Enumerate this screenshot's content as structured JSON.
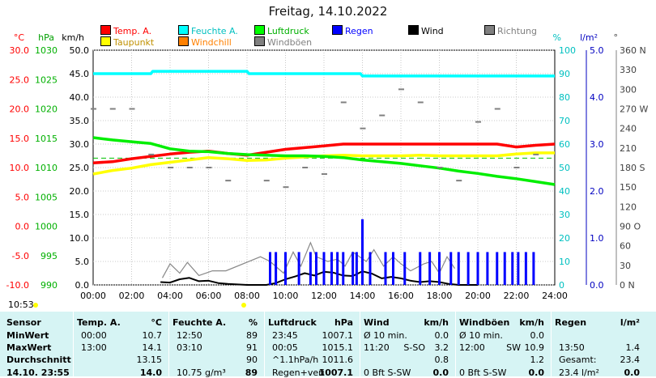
{
  "title": "Freitag, 14.10.2022",
  "time_label": "10:53",
  "legend": [
    {
      "label": "Temp. A.",
      "color": "#ff0000"
    },
    {
      "label": "Feuchte A.",
      "color": "#00ffff"
    },
    {
      "label": "Luftdruck",
      "color": "#00ff00"
    },
    {
      "label": "Regen",
      "color": "#0000ff"
    },
    {
      "label": "Wind",
      "color": "#000000"
    },
    {
      "label": "Richtung",
      "color": "#808080"
    },
    {
      "label": "Taupunkt",
      "color": "#ffff00"
    },
    {
      "label": "Windchill",
      "color": "#ff8000"
    },
    {
      "label": "Windböen",
      "color": "#808080"
    }
  ],
  "axis_units": {
    "temp": "°C",
    "press": "hPa",
    "wind": "km/h",
    "hum": "%",
    "rain": "l/m²",
    "dir": "°"
  },
  "chart_data": {
    "type": "line",
    "x_ticks": [
      "00:00",
      "02:00",
      "04:00",
      "06:00",
      "08:00",
      "10:00",
      "12:00",
      "14:00",
      "16:00",
      "18:00",
      "20:00",
      "22:00",
      "24:00"
    ],
    "axes": {
      "temp": {
        "range": [
          -10,
          30
        ],
        "ticks": [
          "-10.0",
          "-5.0",
          "0.0",
          "5.0",
          "10.0",
          "15.0",
          "20.0",
          "25.0",
          "30.0"
        ],
        "color": "#ff0000"
      },
      "pressure": {
        "range": [
          990,
          1030
        ],
        "ticks": [
          "990",
          "995",
          "1000",
          "1005",
          "1010",
          "1015",
          "1020",
          "1025",
          "1030"
        ],
        "color": "#00c000"
      },
      "wind": {
        "range": [
          0,
          50
        ],
        "ticks": [
          "0.0",
          "5.0",
          "10.0",
          "15.0",
          "20.0",
          "25.0",
          "30.0",
          "35.0",
          "40.0",
          "45.0",
          "50.0"
        ],
        "color": "#000000"
      },
      "humidity": {
        "range": [
          0,
          100
        ],
        "ticks": [
          "0",
          "10",
          "20",
          "30",
          "40",
          "50",
          "60",
          "70",
          "80",
          "90",
          "100"
        ],
        "color": "#00c0c0"
      },
      "rain": {
        "range": [
          0,
          5
        ],
        "ticks": [
          "0.0",
          "1.0",
          "2.0",
          "3.0",
          "4.0",
          "5.0"
        ],
        "color": "#0000c0"
      },
      "direction": {
        "range": [
          0,
          360
        ],
        "ticks": [
          "0 N",
          "30",
          "60",
          "90 O",
          "120",
          "150",
          "180 S",
          "210",
          "240",
          "270 W",
          "300",
          "330",
          "360 N"
        ],
        "color": "#404040"
      }
    },
    "series": [
      {
        "name": "Temp. A.",
        "axis": "temp",
        "color": "#ff0000",
        "x": [
          0,
          1,
          2,
          3,
          4,
          5,
          6,
          7,
          8,
          9,
          10,
          11,
          12,
          13,
          14,
          15,
          16,
          17,
          18,
          19,
          20,
          21,
          22,
          23,
          24
        ],
        "y": [
          10.8,
          11.0,
          11.5,
          11.9,
          12.3,
          12.6,
          12.8,
          12.4,
          12.1,
          12.6,
          13.1,
          13.4,
          13.7,
          14.0,
          14.0,
          14.0,
          14.0,
          14.0,
          14.0,
          14.0,
          14.0,
          14.0,
          13.5,
          13.8,
          14.0
        ]
      },
      {
        "name": "Taupunkt",
        "axis": "temp",
        "color": "#ffff00",
        "x": [
          0,
          1,
          2,
          3,
          4,
          5,
          6,
          7,
          8,
          9,
          10,
          11,
          12,
          13,
          14,
          15,
          16,
          17,
          18,
          19,
          20,
          21,
          22,
          23,
          24
        ],
        "y": [
          8.9,
          9.5,
          9.9,
          10.5,
          10.9,
          11.3,
          11.7,
          11.5,
          11.2,
          11.3,
          11.6,
          11.8,
          12.0,
          12.1,
          12.0,
          12.0,
          12.0,
          12.1,
          12.0,
          12.0,
          12.0,
          12.0,
          12.3,
          12.5,
          12.5
        ]
      },
      {
        "name": "Luftdruck",
        "axis": "pressure",
        "color": "#00ee00",
        "x": [
          0,
          1,
          2,
          3,
          4,
          5,
          6,
          7,
          8,
          9,
          10,
          11,
          12,
          13,
          14,
          15,
          16,
          17,
          18,
          19,
          20,
          21,
          22,
          23,
          24
        ],
        "y": [
          1015.1,
          1014.7,
          1014.4,
          1014.1,
          1013.2,
          1012.8,
          1012.7,
          1012.4,
          1012.2,
          1012.1,
          1012.0,
          1012.0,
          1011.9,
          1011.7,
          1011.3,
          1011.0,
          1010.7,
          1010.3,
          1009.9,
          1009.4,
          1009.0,
          1008.5,
          1008.1,
          1007.6,
          1007.1
        ]
      },
      {
        "name": "Feuchte A.",
        "axis": "humidity",
        "color": "#00ffff",
        "x": [
          0,
          3,
          3.1,
          8,
          8.1,
          13.9,
          14,
          21,
          21.1,
          24
        ],
        "y": [
          90,
          90,
          91,
          91,
          90,
          90,
          89,
          89,
          89,
          89
        ]
      },
      {
        "name": "Wind",
        "axis": "wind",
        "color": "#000000",
        "x": [
          3.5,
          4,
          4.5,
          5,
          5.5,
          6,
          6.5,
          7,
          7.5,
          8,
          8.5,
          9,
          9.5,
          10,
          10.5,
          11,
          11.5,
          12,
          12.5,
          13,
          13.5,
          14,
          14.5,
          15,
          15.5,
          16,
          16.5,
          17,
          17.5,
          18,
          18.5,
          19,
          19.5,
          20
        ],
        "y": [
          0.6,
          0.5,
          1.2,
          1.5,
          0.8,
          0.9,
          0.4,
          0.2,
          0.1,
          0.0,
          0.0,
          0.0,
          0.4,
          1.2,
          1.8,
          2.5,
          2.0,
          2.8,
          2.6,
          2.0,
          1.9,
          2.9,
          2.4,
          1.4,
          1.7,
          1.4,
          0.9,
          0.6,
          0.8,
          0.6,
          0.2,
          0.0,
          0.0,
          0.0
        ]
      },
      {
        "name": "Windböen",
        "axis": "wind",
        "color": "#888888",
        "x": [
          3.6,
          4,
          4.5,
          4.9,
          5.5,
          6.2,
          6.9,
          8.7,
          9.2,
          9.9,
          10.4,
          10.8,
          11.3,
          11.6,
          12.2,
          12.7,
          13.1,
          13.5,
          14.2,
          14.6,
          15.1,
          15.6,
          16.0,
          16.5,
          17.2,
          17.6,
          18.0,
          18.4,
          18.8
        ],
        "y": [
          1.5,
          4.5,
          2.5,
          4.8,
          2.0,
          3.0,
          3.0,
          6.0,
          5.0,
          2.5,
          7.0,
          4.0,
          9.0,
          6.0,
          5.0,
          5.5,
          4.0,
          7.0,
          5.0,
          7.5,
          4.0,
          6.0,
          4.5,
          3.0,
          4.5,
          5.0,
          2.5,
          6.0,
          3.5
        ]
      },
      {
        "name": "Regen",
        "axis": "rain",
        "color": "#0000ff",
        "x": [
          9.2,
          9.5,
          10.0,
          10.7,
          11.3,
          11.6,
          12.0,
          12.4,
          12.7,
          13.0,
          13.5,
          13.7,
          14.0,
          14.4,
          15.2,
          15.6,
          16.2,
          17.0,
          17.5,
          18.0,
          18.6,
          19.0,
          19.5,
          20.0,
          20.5,
          21.0,
          21.4,
          21.8,
          22.1,
          22.5,
          22.9
        ],
        "y": [
          0.7,
          0.7,
          0.7,
          0.7,
          0.7,
          0.7,
          0.7,
          0.7,
          0.7,
          0.7,
          0.7,
          0.7,
          1.4,
          0.7,
          0.7,
          0.7,
          0.7,
          0.7,
          0.7,
          0.7,
          0.7,
          0.7,
          0.7,
          0.7,
          0.7,
          0.7,
          0.7,
          0.7,
          0.7,
          0.7,
          0.7
        ]
      },
      {
        "name": "Richtung",
        "axis": "direction",
        "color": "#808080",
        "x": [
          0,
          1,
          2,
          3,
          4,
          5,
          6,
          7,
          9,
          10,
          11,
          12,
          13,
          14,
          15,
          16,
          17,
          18,
          19,
          20,
          21,
          22,
          23
        ],
        "y": [
          270,
          270,
          270,
          200,
          180,
          180,
          180,
          160,
          160,
          150,
          180,
          170,
          280,
          240,
          260,
          300,
          280,
          180,
          160,
          250,
          270,
          180,
          200
        ]
      }
    ]
  },
  "stats": {
    "headers": {
      "sensor": "Sensor",
      "temp": "Temp. A.",
      "temp_unit": "°C",
      "hum": "Feuchte A.",
      "hum_unit": "%",
      "press": "Luftdruck",
      "press_unit": "hPa",
      "wind": "Wind",
      "wind_unit": "km/h",
      "gust": "Windböen",
      "gust_unit": "km/h",
      "rain": "Regen",
      "rain_unit": "l/m²"
    },
    "rows": [
      {
        "label": "MinWert",
        "temp_time": "00:00",
        "temp_val": "10.7",
        "hum_time": "12:50",
        "hum_val": "89",
        "press_time": "23:45",
        "press_val": "1007.1",
        "wind_time": "Ø 10 min.",
        "wind_val": "0.0",
        "gust_time": "Ø 10 min.",
        "gust_val": "0.0",
        "rain_time": "",
        "rain_val": ""
      },
      {
        "label": "MaxWert",
        "temp_time": "13:00",
        "temp_val": "14.1",
        "hum_time": "03:10",
        "hum_val": "91",
        "press_time": "00:05",
        "press_val": "1015.1",
        "wind_time": "11:20",
        "wind_dir": "S-SO",
        "wind_val": "3.2",
        "gust_time": "12:00",
        "gust_dir": "SW",
        "gust_val": "10.9",
        "rain_time": "13:50",
        "rain_val": "1.4"
      },
      {
        "label": "Durchschnitt",
        "temp_time": "",
        "temp_val": "13.15",
        "hum_time": "",
        "hum_val": "90",
        "press_time": "^1.1hPa/h",
        "press_val": "1011.6",
        "wind_time": "",
        "wind_val": "0.8",
        "gust_time": "",
        "gust_val": "1.2",
        "rain_time": "Gesamt:",
        "rain_val": "23.4"
      },
      {
        "label": "14.10. 23:55",
        "temp_time": "",
        "temp_val": "14.0",
        "hum_time": "10.75 g/m³",
        "hum_val": "89",
        "press_time": "Regen+veri",
        "press_val": "1007.1",
        "wind_time": "0 Bft S-SW",
        "wind_val": "0.0",
        "gust_time": "0 Bft S-SW",
        "gust_val": "0.0",
        "rain_time": "23.4 l/m²",
        "rain_val": "0.0"
      }
    ]
  }
}
